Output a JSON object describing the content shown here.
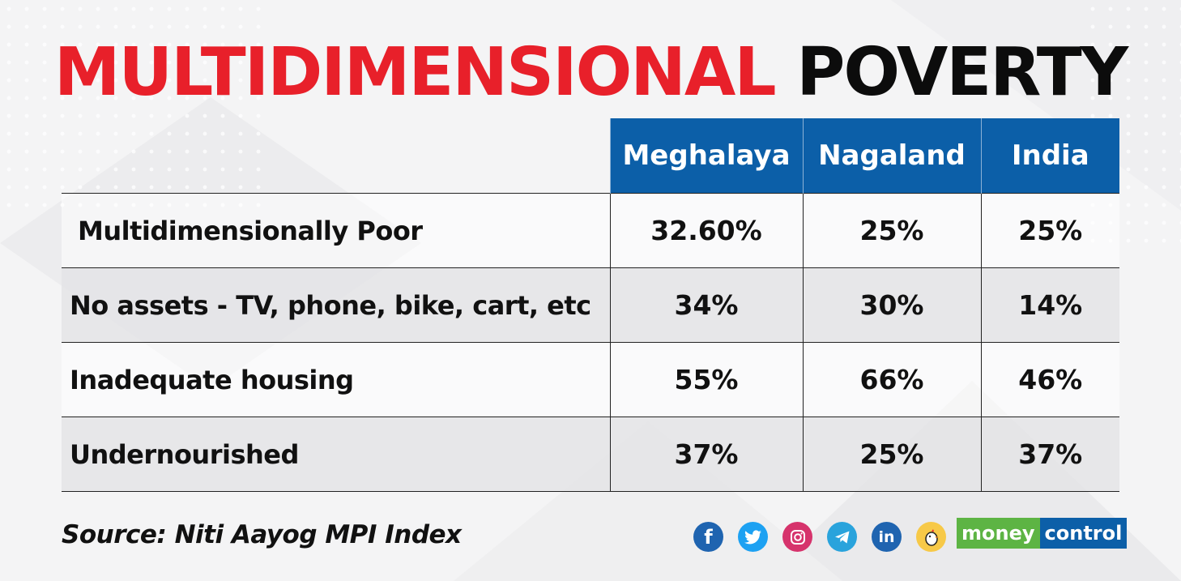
{
  "header": {
    "title_red": "MULTIDIMENSIONAL",
    "title_black": "POVERTY"
  },
  "colors": {
    "title_red": "#e8202a",
    "header_blue": "#0c5fa8",
    "brand_green": "#5db444"
  },
  "chart_data": {
    "type": "table",
    "columns": [
      "Meghalaya",
      "Nagaland",
      "India"
    ],
    "rows": [
      {
        "label": "Multidimensionally Poor",
        "values": [
          "32.60%",
          "25%",
          "25%"
        ]
      },
      {
        "label": "No assets - TV, phone, bike, cart, etc",
        "values": [
          "34%",
          "30%",
          "14%"
        ]
      },
      {
        "label": "Inadequate housing",
        "values": [
          "55%",
          "66%",
          "46%"
        ]
      },
      {
        "label": "Undernourished",
        "values": [
          "37%",
          "25%",
          "37%"
        ]
      }
    ]
  },
  "footer": {
    "source": "Source: Niti Aayog MPI Index",
    "social_icons": [
      "facebook-icon",
      "twitter-icon",
      "instagram-icon",
      "telegram-icon",
      "linkedin-icon",
      "koo-icon"
    ],
    "facebook_glyph": "f",
    "linkedin_glyph": "in",
    "brand_part1": "money",
    "brand_part2": "control"
  }
}
